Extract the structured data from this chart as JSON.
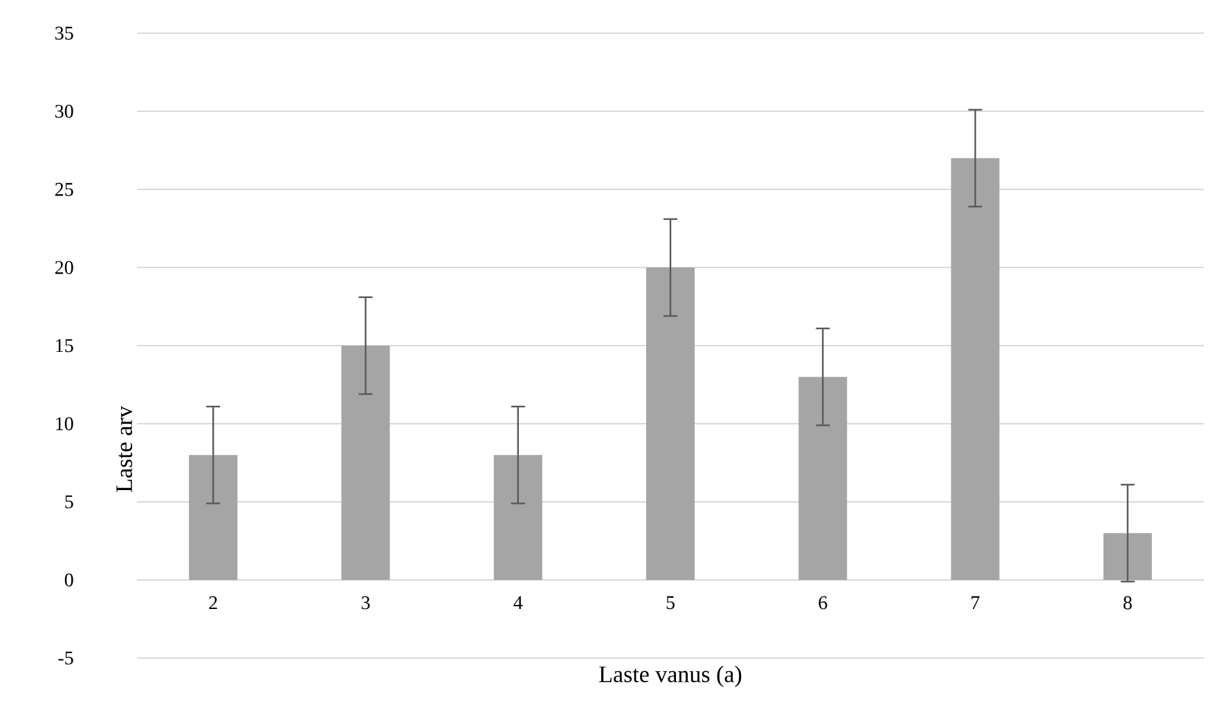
{
  "chart_data": {
    "type": "bar",
    "xlabel": "Laste vanus (a)",
    "ylabel": "Laste arv",
    "categories": [
      "2",
      "3",
      "4",
      "5",
      "6",
      "7",
      "8"
    ],
    "values": [
      8,
      15,
      8,
      20,
      13,
      27,
      3
    ],
    "errors": [
      3.1,
      3.1,
      3.1,
      3.1,
      3.1,
      3.1,
      3.1
    ],
    "color": "#a5a5a5",
    "ylim": [
      -5,
      35
    ],
    "yticks": [
      -5,
      0,
      5,
      10,
      15,
      20,
      25,
      30,
      35
    ],
    "grid": "y"
  }
}
